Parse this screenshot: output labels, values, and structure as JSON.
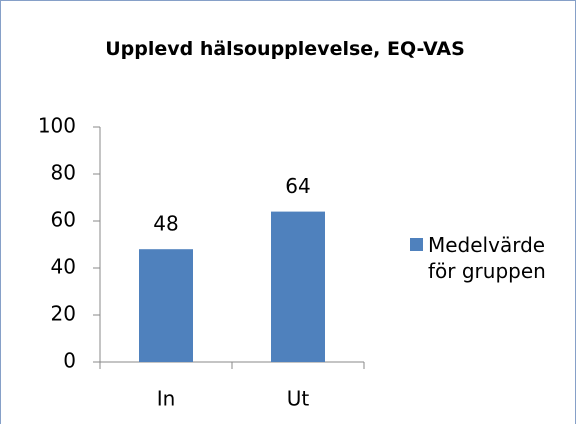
{
  "chart_data": {
    "type": "bar",
    "title": "Upplevd hälsoupplevelse, EQ-VAS",
    "categories": [
      "In",
      "Ut"
    ],
    "series": [
      {
        "name": "Medelvärde för gruppen",
        "color": "#4f81bd",
        "values": [
          48,
          64
        ]
      }
    ],
    "ylim": [
      0,
      100
    ],
    "yticks": [
      0,
      20,
      40,
      60,
      80,
      100
    ],
    "grid": false,
    "legend": "right"
  }
}
